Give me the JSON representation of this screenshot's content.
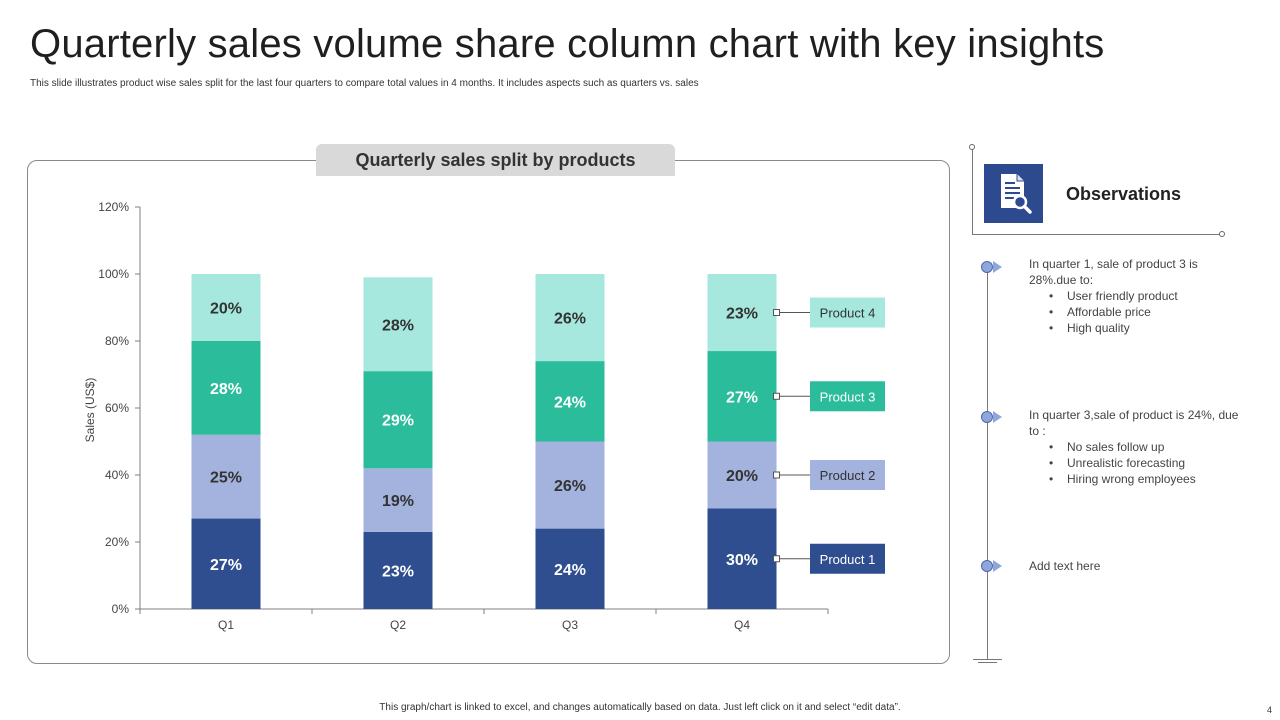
{
  "title": "Quarterly sales volume share column chart with key insights",
  "subtitle": "This slide illustrates product wise sales split for the last four quarters to compare total values in  4 months. It includes aspects such as quarters vs. sales",
  "chart_data": {
    "type": "bar",
    "stacked": true,
    "title": "Quarterly sales split by products",
    "ylabel": "Sales (US$)",
    "xlabel": "",
    "categories": [
      "Q1",
      "Q2",
      "Q3",
      "Q4"
    ],
    "ylim": [
      0,
      120
    ],
    "yticks": [
      "0%",
      "20%",
      "40%",
      "60%",
      "80%",
      "100%",
      "120%"
    ],
    "series": [
      {
        "name": "Product 1",
        "values": [
          27,
          23,
          24,
          30
        ],
        "labels": [
          "27%",
          "23%",
          "24%",
          "30%"
        ],
        "color": "#2f4e8f"
      },
      {
        "name": "Product 2",
        "values": [
          25,
          19,
          26,
          20
        ],
        "labels": [
          "25%",
          "19%",
          "26%",
          "20%"
        ],
        "color": "#a3b3de"
      },
      {
        "name": "Product 3",
        "values": [
          28,
          29,
          24,
          27
        ],
        "labels": [
          "28%",
          "29%",
          "24%",
          "27%"
        ],
        "color": "#2bbc9b"
      },
      {
        "name": "Product 4",
        "values": [
          20,
          28,
          26,
          23
        ],
        "labels": [
          "20%",
          "28%",
          "26%",
          "23%"
        ],
        "color": "#a6e8dd"
      }
    ],
    "legend_placement": "right, aligned to last column"
  },
  "observations": {
    "title": "Observations",
    "icon": "document-search-icon",
    "items": [
      {
        "text": "In quarter 1, sale of product 3 is 28%.due to:",
        "bullets": [
          "User friendly product",
          "Affordable price",
          "High quality"
        ]
      },
      {
        "text": "In quarter 3,sale of product is 24%, due to :",
        "bullets": [
          "No sales follow up",
          "Unrealistic forecasting",
          "Hiring wrong employees"
        ]
      },
      {
        "text": "Add text here",
        "bullets": []
      }
    ]
  },
  "footer": "This graph/chart is linked to excel, and changes automatically based on data. Just left click on it and select “edit data”.",
  "page_number": "4"
}
